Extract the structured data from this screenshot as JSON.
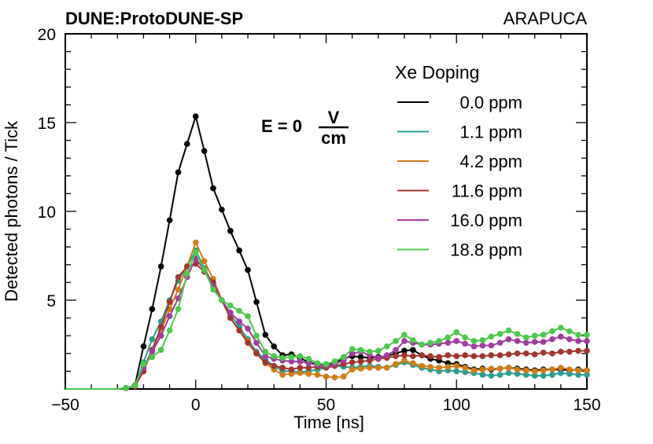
{
  "header": {
    "left_title": "DUNE:ProtoDUNE-SP",
    "right_title": "ARAPUCA"
  },
  "annotation": {
    "prefix": "E = 0",
    "fraction_numerator": "V",
    "fraction_denominator": "cm"
  },
  "chart_data": {
    "type": "line",
    "xlabel": "Time [ns]",
    "ylabel": "Detected photons / Tick",
    "xlim": [
      -50,
      150
    ],
    "ylim": [
      0,
      20
    ],
    "x_ticks": [
      -50,
      0,
      50,
      100,
      150
    ],
    "x_tick_labels": [
      "−50",
      "0",
      "50",
      "100",
      "150"
    ],
    "y_ticks": [
      5,
      10,
      15,
      20
    ],
    "y_tick_labels": [
      "5",
      "10",
      "15",
      "20"
    ],
    "legend_title": "Xe Doping",
    "legend_position": "top-right",
    "x": [
      -50,
      -46.7,
      -43.3,
      -40,
      -36.7,
      -33.3,
      -30,
      -26.7,
      -23.3,
      -20,
      -16.7,
      -13.3,
      -10,
      -6.7,
      -3.3,
      0,
      3.3,
      6.7,
      10,
      13.3,
      16.7,
      20,
      23.3,
      26.7,
      30,
      33.3,
      36.7,
      40,
      43.3,
      46.7,
      50,
      53.3,
      56.7,
      60,
      63.3,
      66.7,
      70,
      73.3,
      76.7,
      80,
      83.3,
      86.7,
      90,
      93.3,
      96.7,
      100,
      103.3,
      106.7,
      110,
      113.3,
      116.7,
      120,
      123.3,
      126.7,
      130,
      133.3,
      136.7,
      140,
      143.3,
      146.7,
      150
    ],
    "series": [
      {
        "name": "0.0 ppm",
        "color": "#000000",
        "marker_start": 7,
        "values": [
          0,
          0,
          0,
          0,
          0,
          0,
          0,
          0.05,
          0.2,
          2.4,
          4.5,
          6.9,
          9.5,
          12.2,
          13.8,
          15.35,
          13.4,
          11.3,
          10.1,
          8.9,
          7.8,
          6.7,
          4.9,
          3.05,
          2.4,
          1.9,
          1.95,
          1.75,
          1.5,
          1.4,
          1.35,
          1.5,
          1.7,
          1.85,
          1.8,
          1.75,
          1.8,
          1.85,
          2.0,
          2.15,
          2.2,
          1.9,
          1.7,
          1.6,
          1.45,
          1.4,
          1.25,
          1.1,
          1.15,
          1.1,
          1.15,
          1.2,
          1.15,
          1.1,
          1.05,
          1.1,
          1.1,
          1.1,
          1.05,
          1.1,
          1.05
        ]
      },
      {
        "name": "1.1 ppm",
        "color": "#2a9d8f",
        "marker_start": 7,
        "values": [
          0,
          0,
          0,
          0,
          0,
          0,
          0,
          0.05,
          0.2,
          1.5,
          2.8,
          3.8,
          5.0,
          6.1,
          6.9,
          7.8,
          6.8,
          5.9,
          5.0,
          4.2,
          3.5,
          2.8,
          2.1,
          1.65,
          1.3,
          1.0,
          1.0,
          0.95,
          1.0,
          1.1,
          1.2,
          1.3,
          1.25,
          1.2,
          1.25,
          1.3,
          1.25,
          1.2,
          1.35,
          1.5,
          1.35,
          1.2,
          1.1,
          1.0,
          1.05,
          1.0,
          0.95,
          0.9,
          0.8,
          0.75,
          0.8,
          0.9,
          0.85,
          0.8,
          0.75,
          0.75,
          0.8,
          0.9,
          0.85,
          0.8,
          0.8
        ]
      },
      {
        "name": "4.2 ppm",
        "color": "#d07d17",
        "marker_start": 7,
        "values": [
          0,
          0,
          0,
          0,
          0,
          0,
          0,
          0.05,
          0.2,
          1.2,
          2.2,
          3.3,
          4.5,
          5.6,
          6.9,
          8.25,
          7.2,
          6.2,
          5.0,
          4.0,
          3.3,
          2.7,
          2.0,
          1.45,
          1.1,
          0.8,
          0.85,
          0.9,
          0.85,
          0.8,
          0.7,
          0.65,
          0.7,
          1.1,
          1.15,
          1.2,
          1.2,
          1.2,
          1.4,
          1.6,
          1.45,
          1.3,
          1.25,
          1.2,
          1.25,
          1.3,
          1.2,
          1.05,
          1.1,
          1.15,
          1.15,
          1.2,
          1.1,
          1.05,
          1.0,
          1.05,
          1.1,
          1.2,
          1.1,
          1.05,
          1.05
        ]
      },
      {
        "name": "11.6 ppm",
        "color": "#a0362f",
        "marker_start": 7,
        "values": [
          0,
          0,
          0,
          0,
          0,
          0,
          0,
          0.05,
          0.15,
          1.0,
          2.2,
          3.5,
          4.9,
          6.3,
          6.9,
          7.05,
          6.6,
          6.0,
          5.0,
          4.0,
          3.3,
          2.6,
          2.0,
          1.5,
          1.3,
          1.2,
          1.1,
          1.2,
          1.2,
          1.25,
          1.2,
          1.3,
          1.4,
          1.5,
          1.55,
          1.6,
          1.7,
          1.75,
          1.85,
          1.9,
          1.85,
          1.9,
          1.85,
          1.8,
          1.9,
          1.85,
          1.9,
          1.85,
          1.85,
          1.9,
          1.9,
          1.95,
          2.0,
          2.0,
          1.95,
          2.05,
          2.0,
          2.1,
          2.1,
          2.15,
          2.15
        ]
      },
      {
        "name": "16.0 ppm",
        "color": "#a13d9f",
        "marker_start": 7,
        "values": [
          0,
          0,
          0,
          0,
          0,
          0,
          0,
          0.05,
          0.2,
          1.2,
          2.1,
          3.0,
          4.1,
          5.1,
          6.3,
          7.35,
          6.7,
          5.8,
          5.0,
          4.3,
          3.8,
          3.4,
          2.6,
          1.85,
          1.7,
          1.6,
          1.55,
          1.55,
          1.45,
          1.35,
          1.3,
          1.4,
          1.6,
          2.0,
          2.1,
          1.9,
          1.75,
          1.9,
          2.2,
          2.7,
          2.6,
          2.5,
          2.5,
          2.55,
          2.6,
          2.7,
          2.55,
          2.4,
          2.45,
          2.45,
          2.6,
          2.8,
          2.7,
          2.6,
          2.65,
          2.65,
          2.8,
          2.95,
          2.8,
          2.7,
          2.7
        ]
      },
      {
        "name": "18.8 ppm",
        "color": "#4cc94c",
        "marker_start": 7,
        "values": [
          0,
          0,
          0,
          0,
          0,
          0,
          0,
          0.05,
          0.2,
          1.4,
          1.8,
          2.2,
          3.3,
          4.5,
          6.5,
          7.7,
          6.7,
          5.6,
          5.0,
          4.7,
          4.4,
          4.1,
          3.0,
          2.1,
          1.85,
          1.75,
          1.8,
          1.85,
          1.7,
          1.45,
          1.4,
          1.55,
          1.8,
          2.25,
          2.2,
          2.1,
          2.15,
          2.4,
          2.7,
          3.05,
          2.75,
          2.5,
          2.6,
          2.7,
          2.9,
          3.2,
          2.9,
          2.7,
          2.75,
          2.95,
          3.1,
          3.3,
          3.1,
          2.9,
          3.0,
          3.05,
          3.25,
          3.45,
          3.25,
          3.05,
          3.05
        ]
      }
    ]
  }
}
